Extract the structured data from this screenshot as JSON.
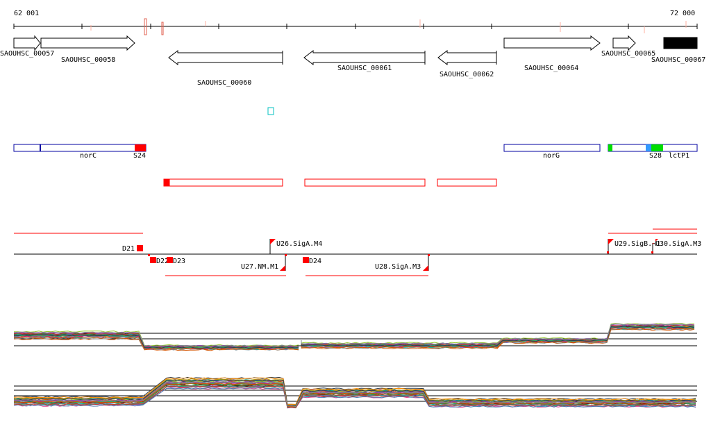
{
  "ruler": {
    "start_label": "62 001",
    "end_label": "72 000"
  },
  "genes": [
    {
      "label": "SAOUHSC_00057",
      "strand": "+"
    },
    {
      "label": "SAOUHSC_00058",
      "strand": "+"
    },
    {
      "label": "SAOUHSC_00060",
      "strand": "-"
    },
    {
      "label": "SAOUHSC_00061",
      "strand": "-"
    },
    {
      "label": "SAOUHSC_00062",
      "strand": "-"
    },
    {
      "label": "SAOUHSC_00064",
      "strand": "+"
    },
    {
      "label": "SAOUHSC_00065",
      "strand": "+"
    },
    {
      "label": "SAOUHSC_00067",
      "strand": "+"
    }
  ],
  "operon_labels": {
    "norC": "norC",
    "S24": "S24",
    "norG": "norG",
    "S28": "S28",
    "lctP1": "lctP1"
  },
  "promoters": [
    {
      "label": "U26.SigA.M4"
    },
    {
      "label": "U27.NM.M1"
    },
    {
      "label": "U28.SigA.M3"
    },
    {
      "label": "U29.SigB.M1"
    },
    {
      "label": "U30.SigA.M3"
    }
  ],
  "terminators": [
    {
      "label": "D21"
    },
    {
      "label": "D22"
    },
    {
      "label": "D23"
    },
    {
      "label": "D24"
    }
  ],
  "colors": {
    "operon_border": "#0000a0",
    "red": "#ff0000",
    "tss_red": "#dd0000",
    "cyan": "#00c0c0",
    "green": "#00dd00",
    "blue": "#3399ff"
  }
}
